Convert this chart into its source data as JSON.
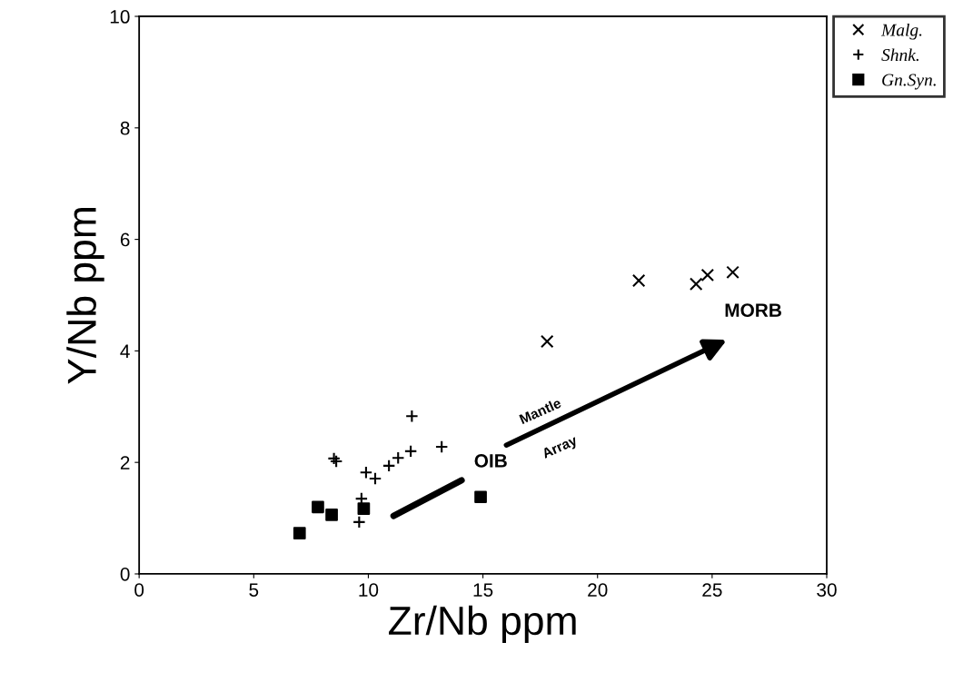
{
  "chart_data": {
    "type": "scatter",
    "xlabel": "Zr/Nb ppm",
    "ylabel": "Y/Nb ppm",
    "xlim": [
      0,
      30
    ],
    "xticks": [
      0,
      5,
      10,
      15,
      20,
      25,
      30
    ],
    "ylim": [
      0,
      10
    ],
    "yticks": [
      0,
      2,
      4,
      6,
      8,
      10
    ],
    "grid": false,
    "legend": "top right",
    "series": [
      {
        "name": "Malg.",
        "color": "#000000",
        "marker": "cross",
        "x": [
          17.8,
          21.8,
          24.3,
          24.8,
          25.9
        ],
        "values": [
          4.17,
          5.26,
          5.2,
          5.36,
          5.41
        ]
      },
      {
        "name": "Shnk.",
        "color": "#000000",
        "marker": "plus",
        "x": [
          8.5,
          8.6,
          9.9,
          10.3,
          10.9,
          11.3,
          11.85,
          11.9,
          13.2,
          9.7,
          9.6
        ],
        "values": [
          2.07,
          2.02,
          1.82,
          1.71,
          1.94,
          2.08,
          2.2,
          2.83,
          2.28,
          1.35,
          0.93
        ]
      },
      {
        "name": "Gn.Syn.",
        "color": "#000000",
        "marker": "square",
        "x": [
          7.0,
          7.8,
          8.4,
          9.8,
          14.9
        ],
        "values": [
          0.73,
          1.2,
          1.06,
          1.17,
          1.38
        ]
      }
    ],
    "annotations": [
      "OIB",
      "MORB",
      "Mantle",
      "Array"
    ]
  }
}
